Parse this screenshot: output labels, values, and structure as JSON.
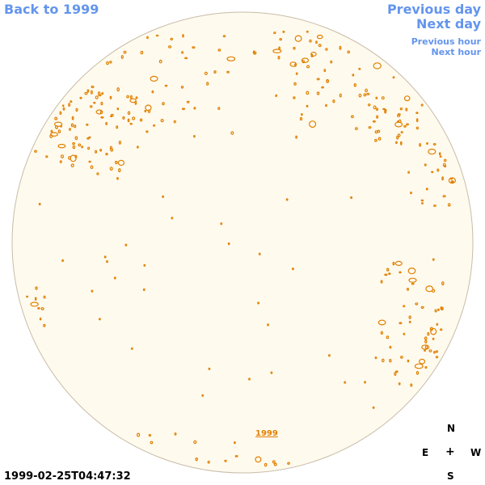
{
  "nav": {
    "back_label": "Back to 1999",
    "prev_day_label": "Previous day",
    "next_day_label": "Next day",
    "prev_hour_label": "Previous hour",
    "next_hour_label": "Next hour"
  },
  "timestamp": "1999-02-25T04:47:32",
  "year_link_label": "1999",
  "compass": {
    "north": "N",
    "east": "E",
    "center": "+",
    "west": "W",
    "south": "S"
  },
  "colors": {
    "disk_fill": "#fffaee",
    "disk_outline": "#c8bca8",
    "contour": "#e08000",
    "link": "#6495ed"
  }
}
